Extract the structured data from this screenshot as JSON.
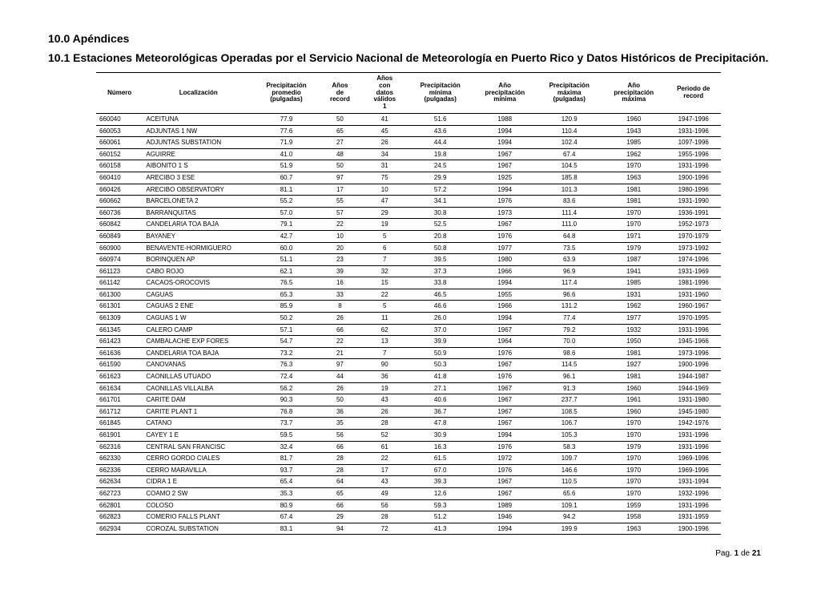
{
  "section_title": "10.0 Apéndices",
  "subsection_title": "10.1 Estaciones Meteorológicas Operadas por el Servicio Nacional de Meteorología en Puerto Rico y Datos Históricos de Precipitación.",
  "footer": "Pag. 1 de 21",
  "table": {
    "columns": [
      "Número",
      "Localización",
      "Precipitación promedio (pulgadas)",
      "Años de record",
      "Años con datos válidos 1",
      "Precipitación mínima (pulgadas)",
      "Año precipitación mínima",
      "Precipitación máxima (pulgadas)",
      "Año precipitación máxima",
      "Periodo de record"
    ],
    "rows": [
      [
        "660040",
        "ACEITUNA",
        "77.9",
        "50",
        "41",
        "51.6",
        "1988",
        "120.9",
        "1960",
        "1947-1996"
      ],
      [
        "660053",
        "ADJUNTAS 1 NW",
        "77.6",
        "65",
        "45",
        "43.6",
        "1994",
        "110.4",
        "1943",
        "1931-1996"
      ],
      [
        "660061",
        "ADJUNTAS SUBSTATION",
        "71.9",
        "27",
        "26",
        "44.4",
        "1994",
        "102.4",
        "1985",
        "1097-1996"
      ],
      [
        "660152",
        "AGUIRRE",
        "41.0",
        "48",
        "34",
        "19.8",
        "1967",
        "67.4",
        "1962",
        "1955-1996"
      ],
      [
        "660158",
        "AIBONITO 1 S",
        "51.9",
        "50",
        "31",
        "24.5",
        "1967",
        "104.5",
        "1970",
        "1931-1996"
      ],
      [
        "660410",
        "ARECIBO 3 ESE",
        "60.7",
        "97",
        "75",
        "29.9",
        "1925",
        "185.8",
        "1963",
        "1900-1996"
      ],
      [
        "660426",
        "ARECIBO OBSERVATORY",
        "81.1",
        "17",
        "10",
        "57.2",
        "1994",
        "101.3",
        "1981",
        "1980-1996"
      ],
      [
        "660662",
        "BARCELONETA 2",
        "55.2",
        "55",
        "47",
        "34.1",
        "1976",
        "83.6",
        "1981",
        "1931-1990"
      ],
      [
        "660736",
        "BARRANQUITAS",
        "57.0",
        "57",
        "29",
        "30.8",
        "1973",
        "111.4",
        "1970",
        "1936-1991"
      ],
      [
        "660842",
        "CANDELARIA TOA BAJA",
        "79.1",
        "22",
        "19",
        "52.5",
        "1967",
        "111.0",
        "1970",
        "1952-1973"
      ],
      [
        "660849",
        "BAYANEY",
        "42.7",
        "10",
        "5",
        "20.8",
        "1976",
        "64.8",
        "1971",
        "1970-1979"
      ],
      [
        "660900",
        "BENAVENTE-HORMIGUERO",
        "60.0",
        "20",
        "6",
        "50.8",
        "1977",
        "73.5",
        "1979",
        "1973-1992"
      ],
      [
        "660974",
        "BORINQUEN AP",
        "51.1",
        "23",
        "7",
        "39.5",
        "1980",
        "63.9",
        "1987",
        "1974-1996"
      ],
      [
        "661123",
        "CABO ROJO",
        "62.1",
        "39",
        "32",
        "37.3",
        "1966",
        "96.9",
        "1941",
        "1931-1969"
      ],
      [
        "661142",
        "CACAOS-OROCOVIS",
        "76.5",
        "16",
        "15",
        "33.8",
        "1994",
        "117.4",
        "1985",
        "1981-1996"
      ],
      [
        "661300",
        "CAGUAS",
        "65.3",
        "33",
        "22",
        "46.5",
        "1955",
        "96.6",
        "1931",
        "1931-1960"
      ],
      [
        "661301",
        "CAGUAS 2 ENE",
        "85.9",
        "8",
        "5",
        "46.6",
        "1966",
        "131.2",
        "1962",
        "1960-1967"
      ],
      [
        "661309",
        "CAGUAS 1 W",
        "50.2",
        "26",
        "11",
        "26.0",
        "1994",
        "77.4",
        "1977",
        "1970-1995"
      ],
      [
        "661345",
        "CALERO CAMP",
        "57.1",
        "66",
        "62",
        "37.0",
        "1967",
        "79.2",
        "1932",
        "1931-1996"
      ],
      [
        "661423",
        "CAMBALACHE EXP FORES",
        "54.7",
        "22",
        "13",
        "39.9",
        "1964",
        "70.0",
        "1950",
        "1945-1966"
      ],
      [
        "661636",
        "CANDELARIA TOA BAJA",
        "73.2",
        "21",
        "7",
        "50.9",
        "1976",
        "98.6",
        "1981",
        "1973-1996"
      ],
      [
        "661590",
        "CANOVANAS",
        "76.3",
        "97",
        "90",
        "50.3",
        "1967",
        "114.5",
        "1927",
        "1900-1996"
      ],
      [
        "661623",
        "CAONILLAS UTUADO",
        "72.4",
        "44",
        "36",
        "41.8",
        "1976",
        "96.1",
        "1981",
        "1944-1987"
      ],
      [
        "661634",
        "CAONILLAS VILLALBA",
        "56.2",
        "26",
        "19",
        "27.1",
        "1967",
        "91.3",
        "1960",
        "1944-1969"
      ],
      [
        "661701",
        "CARITE DAM",
        "90.3",
        "50",
        "43",
        "40.6",
        "1967",
        "237.7",
        "1961",
        "1931-1980"
      ],
      [
        "661712",
        "CARITE PLANT 1",
        "76.8",
        "36",
        "26",
        "36.7",
        "1967",
        "108.5",
        "1960",
        "1945-1980"
      ],
      [
        "661845",
        "CATANO",
        "73.7",
        "35",
        "28",
        "47.8",
        "1967",
        "106.7",
        "1970",
        "1942-1976"
      ],
      [
        "661901",
        "CAYEY 1 E",
        "59.5",
        "56",
        "52",
        "30.9",
        "1994",
        "105.3",
        "1970",
        "1931-1996"
      ],
      [
        "662316",
        "CENTRAL SAN FRANCISC",
        "32.4",
        "66",
        "61",
        "16.3",
        "1976",
        "58.3",
        "1979",
        "1931-1996"
      ],
      [
        "662330",
        "CERRO GORDO CIALES",
        "81.7",
        "28",
        "22",
        "61.5",
        "1972",
        "109.7",
        "1970",
        "1969-1996"
      ],
      [
        "662336",
        "CERRO MARAVILLA",
        "93.7",
        "28",
        "17",
        "67.0",
        "1976",
        "146.6",
        "1970",
        "1969-1996"
      ],
      [
        "662634",
        "CIDRA 1 E",
        "65.4",
        "64",
        "43",
        "39.3",
        "1967",
        "110.5",
        "1970",
        "1931-1994"
      ],
      [
        "662723",
        "COAMO 2 SW",
        "35.3",
        "65",
        "49",
        "12.6",
        "1967",
        "65.6",
        "1970",
        "1932-1996"
      ],
      [
        "662801",
        "COLOSO",
        "80.9",
        "66",
        "56",
        "59.3",
        "1989",
        "109.1",
        "1959",
        "1931-1996"
      ],
      [
        "662823",
        "COMERIO FALLS PLANT",
        "67.4",
        "29",
        "28",
        "51.2",
        "1946",
        "94.2",
        "1958",
        "1931-1959"
      ],
      [
        "662934",
        "COROZAL SUBSTATION",
        "83.1",
        "94",
        "72",
        "41.3",
        "1994",
        "199.9",
        "1963",
        "1900-1996"
      ]
    ]
  }
}
